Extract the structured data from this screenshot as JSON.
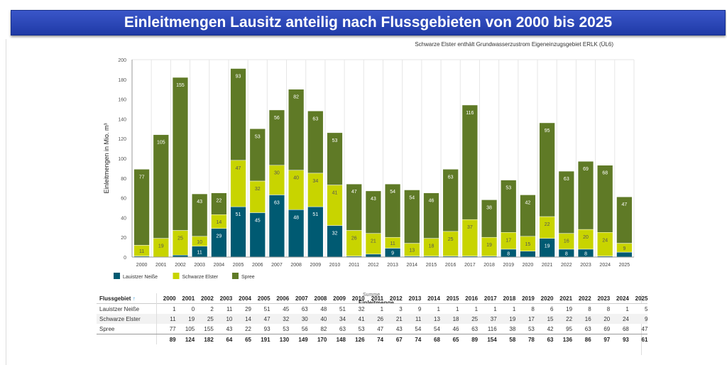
{
  "header": {
    "title": "Einleitmengen Lausitz anteilig nach Flussgebieten von 2000 bis 2025"
  },
  "chart_data": {
    "type": "bar",
    "stacked": true,
    "subtitle": "Schwarze Elster enthält Grundwasserzustrom Eigeneinzugsgebiet ERLK (ÜL6)",
    "ylabel": "Einleitmengen in Mio. m³",
    "xlabel": "",
    "ylim": [
      0,
      200
    ],
    "yticks": [
      0,
      20,
      40,
      60,
      80,
      100,
      120,
      140,
      160,
      180,
      200
    ],
    "grid": true,
    "legend_position": "bottom-left",
    "categories": [
      "2000",
      "2001",
      "2002",
      "2003",
      "2004",
      "2005",
      "2006",
      "2007",
      "2008",
      "2009",
      "2010",
      "2011",
      "2012",
      "2013",
      "2014",
      "2015",
      "2016",
      "2017",
      "2018",
      "2019",
      "2020",
      "2021",
      "2022",
      "2023",
      "2024",
      "2025"
    ],
    "series": [
      {
        "name": "Lauistzer Neiße",
        "color": "#005a72",
        "values": [
          1,
          0,
          2,
          11,
          29,
          51,
          45,
          63,
          48,
          51,
          32,
          1,
          3,
          9,
          1,
          1,
          1,
          1,
          1,
          8,
          6,
          19,
          8,
          8,
          1,
          5
        ]
      },
      {
        "name": "Schwarze Elster",
        "color": "#c8d400",
        "values": [
          11,
          19,
          25,
          10,
          14,
          47,
          32,
          30,
          40,
          34,
          41,
          26,
          21,
          11,
          13,
          18,
          25,
          37,
          19,
          17,
          15,
          22,
          16,
          20,
          24,
          9
        ]
      },
      {
        "name": "Spree",
        "color": "#5f7a26",
        "values": [
          77,
          105,
          155,
          43,
          22,
          93,
          53,
          56,
          82,
          63,
          53,
          47,
          43,
          54,
          54,
          46,
          63,
          116,
          38,
          53,
          42,
          95,
          63,
          69,
          68,
          47
        ]
      }
    ],
    "totals": [
      89,
      124,
      182,
      64,
      65,
      191,
      130,
      149,
      170,
      148,
      126,
      74,
      67,
      74,
      68,
      65,
      89,
      154,
      58,
      78,
      63,
      136,
      86,
      97,
      93,
      61
    ]
  },
  "table": {
    "group_header": "Summe",
    "measure_header": "Einleitmenge",
    "row_header": "Flussgebiet",
    "sort_icon": "sort-up-arrow"
  }
}
